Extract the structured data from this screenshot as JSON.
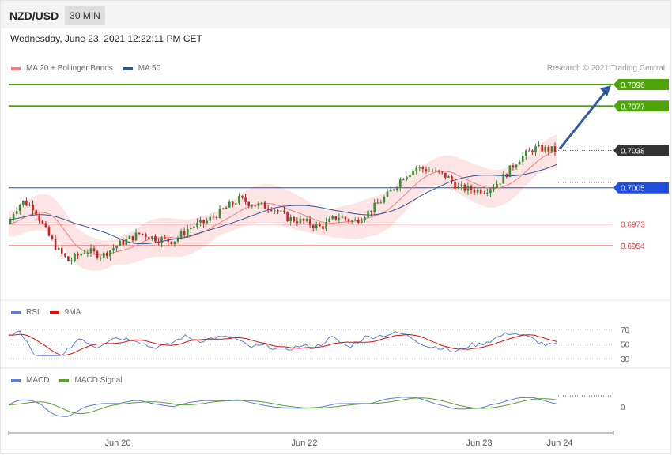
{
  "header": {
    "symbol": "NZD/USD",
    "timeframe": "30 MIN"
  },
  "datetime": "Wednesday, June 23, 2021 12:22:11 PM CET",
  "credit": "Research © 2021 Trading Central",
  "legends": {
    "main": [
      {
        "label": "MA 20 + Bollinger Bands",
        "color": "#f08080"
      },
      {
        "label": "MA 50",
        "color": "#2f5597"
      }
    ],
    "rsi": [
      {
        "label": "RSI",
        "color": "#5b7fd6"
      },
      {
        "label": "9MA",
        "color": "#d81010"
      }
    ],
    "macd": [
      {
        "label": "MACD",
        "color": "#5b7fd6"
      },
      {
        "label": "MACD Signal",
        "color": "#5aa02c"
      }
    ]
  },
  "colors": {
    "target": "#4ea50a",
    "current": "#333333",
    "pivot": "#1f4fe0",
    "support": "#ee4444",
    "arrow": "#2f5c9e",
    "bull": "#3a8a3a",
    "bear": "#cc2222",
    "band": "#fde0e0"
  },
  "chart_data": {
    "type": "candlestick",
    "instrument": "NZD/USD",
    "timeframe": "30 MIN",
    "x_ticks": [
      "Jun 20",
      "Jun 22",
      "Jun 23",
      "Jun 24"
    ],
    "price_levels": [
      {
        "value": 0.7096,
        "label": "0.7096",
        "role": "target"
      },
      {
        "value": 0.7077,
        "label": "0.7077",
        "role": "target"
      },
      {
        "value": 0.7038,
        "label": "0.7038",
        "role": "current"
      },
      {
        "value": 0.7005,
        "label": "0.7005",
        "role": "pivot"
      },
      {
        "value": 0.6973,
        "label": "0.6973",
        "role": "support"
      },
      {
        "value": 0.6954,
        "label": "0.6954",
        "role": "support"
      }
    ],
    "close_path": [
      {
        "t": 0,
        "v": 0.6973
      },
      {
        "t": 0.01,
        "v": 0.6985
      },
      {
        "t": 0.025,
        "v": 0.6993
      },
      {
        "t": 0.045,
        "v": 0.6988
      },
      {
        "t": 0.07,
        "v": 0.6965
      },
      {
        "t": 0.09,
        "v": 0.695
      },
      {
        "t": 0.11,
        "v": 0.694
      },
      {
        "t": 0.14,
        "v": 0.695
      },
      {
        "t": 0.17,
        "v": 0.6945
      },
      {
        "t": 0.2,
        "v": 0.6955
      },
      {
        "t": 0.24,
        "v": 0.6965
      },
      {
        "t": 0.27,
        "v": 0.696
      },
      {
        "t": 0.3,
        "v": 0.6958
      },
      {
        "t": 0.33,
        "v": 0.697
      },
      {
        "t": 0.36,
        "v": 0.6975
      },
      {
        "t": 0.39,
        "v": 0.6985
      },
      {
        "t": 0.42,
        "v": 0.6995
      },
      {
        "t": 0.45,
        "v": 0.699
      },
      {
        "t": 0.48,
        "v": 0.6988
      },
      {
        "t": 0.51,
        "v": 0.6978
      },
      {
        "t": 0.54,
        "v": 0.6975
      },
      {
        "t": 0.57,
        "v": 0.697
      },
      {
        "t": 0.6,
        "v": 0.698
      },
      {
        "t": 0.63,
        "v": 0.6975
      },
      {
        "t": 0.66,
        "v": 0.6985
      },
      {
        "t": 0.69,
        "v": 0.6998
      },
      {
        "t": 0.72,
        "v": 0.7015
      },
      {
        "t": 0.745,
        "v": 0.7023
      },
      {
        "t": 0.77,
        "v": 0.702
      },
      {
        "t": 0.8,
        "v": 0.7015
      },
      {
        "t": 0.82,
        "v": 0.7005
      },
      {
        "t": 0.85,
        "v": 0.7003
      },
      {
        "t": 0.87,
        "v": 0.7003
      },
      {
        "t": 0.895,
        "v": 0.701
      },
      {
        "t": 0.93,
        "v": 0.703
      },
      {
        "t": 0.96,
        "v": 0.704
      },
      {
        "t": 1.0,
        "v": 0.7038
      }
    ],
    "projection": {
      "from": 0.7038,
      "to": 0.7096
    },
    "rsi_ticks": [
      70,
      50,
      30
    ],
    "macd_ticks": [
      0
    ]
  }
}
